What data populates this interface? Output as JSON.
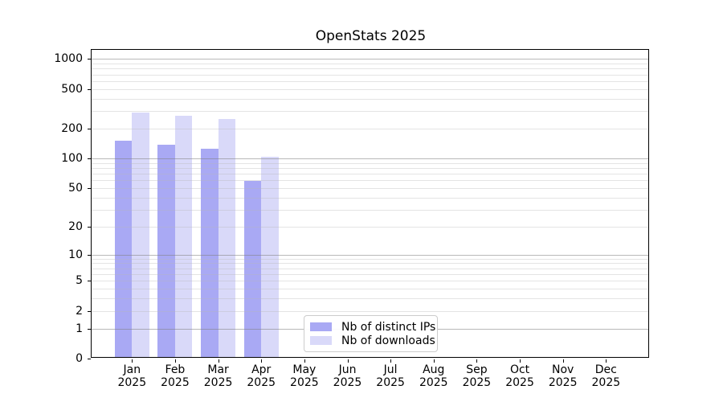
{
  "title": "OpenStats 2025",
  "legend": {
    "items": [
      {
        "label": "Nb of distinct IPs",
        "color": "#a9a9f4"
      },
      {
        "label": "Nb of downloads",
        "color": "#d9d9f9"
      }
    ]
  },
  "colors": {
    "bar_ips": "#a9a9f4",
    "bar_downloads": "#d9d9f9",
    "grid_major": "rgba(128,128,128,0.55)",
    "grid_minor": "rgba(185,185,185,0.38)",
    "axis": "#000000",
    "legend_border": "#cccccc"
  },
  "chart_data": {
    "type": "bar",
    "title": "OpenStats 2025",
    "xlabel": "",
    "ylabel": "",
    "categories": [
      "Jan 2025",
      "Feb 2025",
      "Mar 2025",
      "Apr 2025",
      "May 2025",
      "Jun 2025",
      "Jul 2025",
      "Aug 2025",
      "Sep 2025",
      "Oct 2025",
      "Nov 2025",
      "Dec 2025"
    ],
    "series": [
      {
        "name": "Nb of distinct IPs",
        "color": "#a9a9f4",
        "values": [
          146,
          132,
          121,
          57,
          0,
          0,
          0,
          0,
          0,
          0,
          0,
          0
        ]
      },
      {
        "name": "Nb of downloads",
        "color": "#d9d9f9",
        "values": [
          277,
          261,
          240,
          100,
          0,
          0,
          0,
          0,
          0,
          0,
          0,
          0
        ]
      }
    ],
    "y_scale": "log1p",
    "yticks": [
      0,
      1,
      2,
      5,
      10,
      20,
      50,
      100,
      200,
      500,
      1000
    ],
    "major_gridlines": [
      1,
      10,
      100,
      1000
    ],
    "minor_gridlines": [
      2,
      3,
      4,
      5,
      6,
      7,
      8,
      9,
      20,
      30,
      40,
      50,
      60,
      70,
      80,
      90,
      200,
      300,
      400,
      500,
      600,
      700,
      800,
      900
    ],
    "ylim": [
      0,
      1250
    ],
    "grid": true,
    "legend_position": "lower center"
  }
}
